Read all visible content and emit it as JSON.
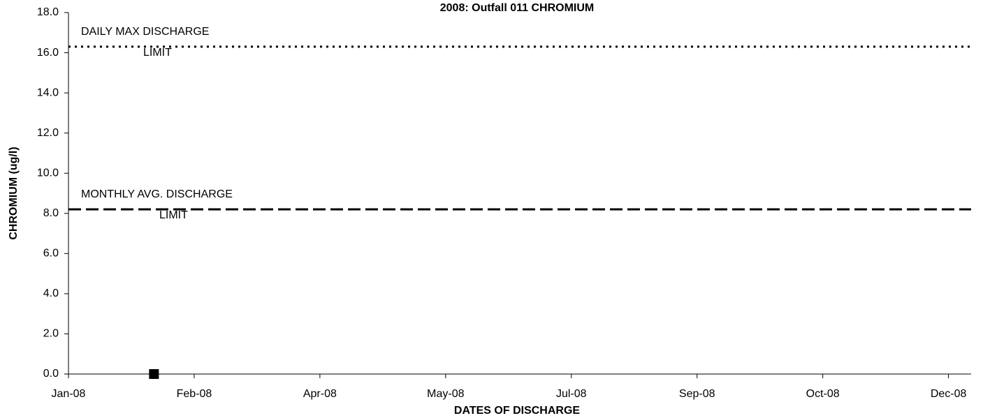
{
  "chart_data": {
    "type": "scatter",
    "title": "2008: Outfall 011 CHROMIUM",
    "xlabel": "DATES OF DISCHARGE",
    "ylabel": "CHROMIUM (ug/l)",
    "x_is_date": true,
    "xlim": [
      "2008-01-01",
      "2008-12-25"
    ],
    "xticks": [
      {
        "value": "2008-01-01",
        "label": "Jan-08"
      },
      {
        "value": "2008-02-20",
        "label": "Feb-08"
      },
      {
        "value": "2008-04-10",
        "label": "Apr-08"
      },
      {
        "value": "2008-05-30",
        "label": "May-08"
      },
      {
        "value": "2008-07-19",
        "label": "Jul-08"
      },
      {
        "value": "2008-09-07",
        "label": "Sep-08"
      },
      {
        "value": "2008-10-27",
        "label": "Oct-08"
      },
      {
        "value": "2008-12-16",
        "label": "Dec-08"
      }
    ],
    "ylim": [
      0,
      18
    ],
    "yticks": [
      {
        "value": 0,
        "label": "0.0"
      },
      {
        "value": 2,
        "label": "2.0"
      },
      {
        "value": 4,
        "label": "4.0"
      },
      {
        "value": 6,
        "label": "6.0"
      },
      {
        "value": 8,
        "label": "8.0"
      },
      {
        "value": 10,
        "label": "10.0"
      },
      {
        "value": 12,
        "label": "12.0"
      },
      {
        "value": 14,
        "label": "14.0"
      },
      {
        "value": 16,
        "label": "16.0"
      },
      {
        "value": 18,
        "label": "18.0"
      }
    ],
    "series": [
      {
        "color": "#000000",
        "marker": "square",
        "x": [
          "2008-02-04"
        ],
        "values": [
          0
        ]
      }
    ],
    "reference_lines": [
      {
        "label_lines": [
          "DAILY MAX DISCHARGE",
          "LIMIT"
        ],
        "value": 16.3,
        "style": "dotted",
        "color": "#000000"
      },
      {
        "label_lines": [
          "MONTHLY AVG. DISCHARGE",
          "LIMIT"
        ],
        "value": 8.2,
        "style": "dashed",
        "color": "#000000"
      }
    ]
  }
}
